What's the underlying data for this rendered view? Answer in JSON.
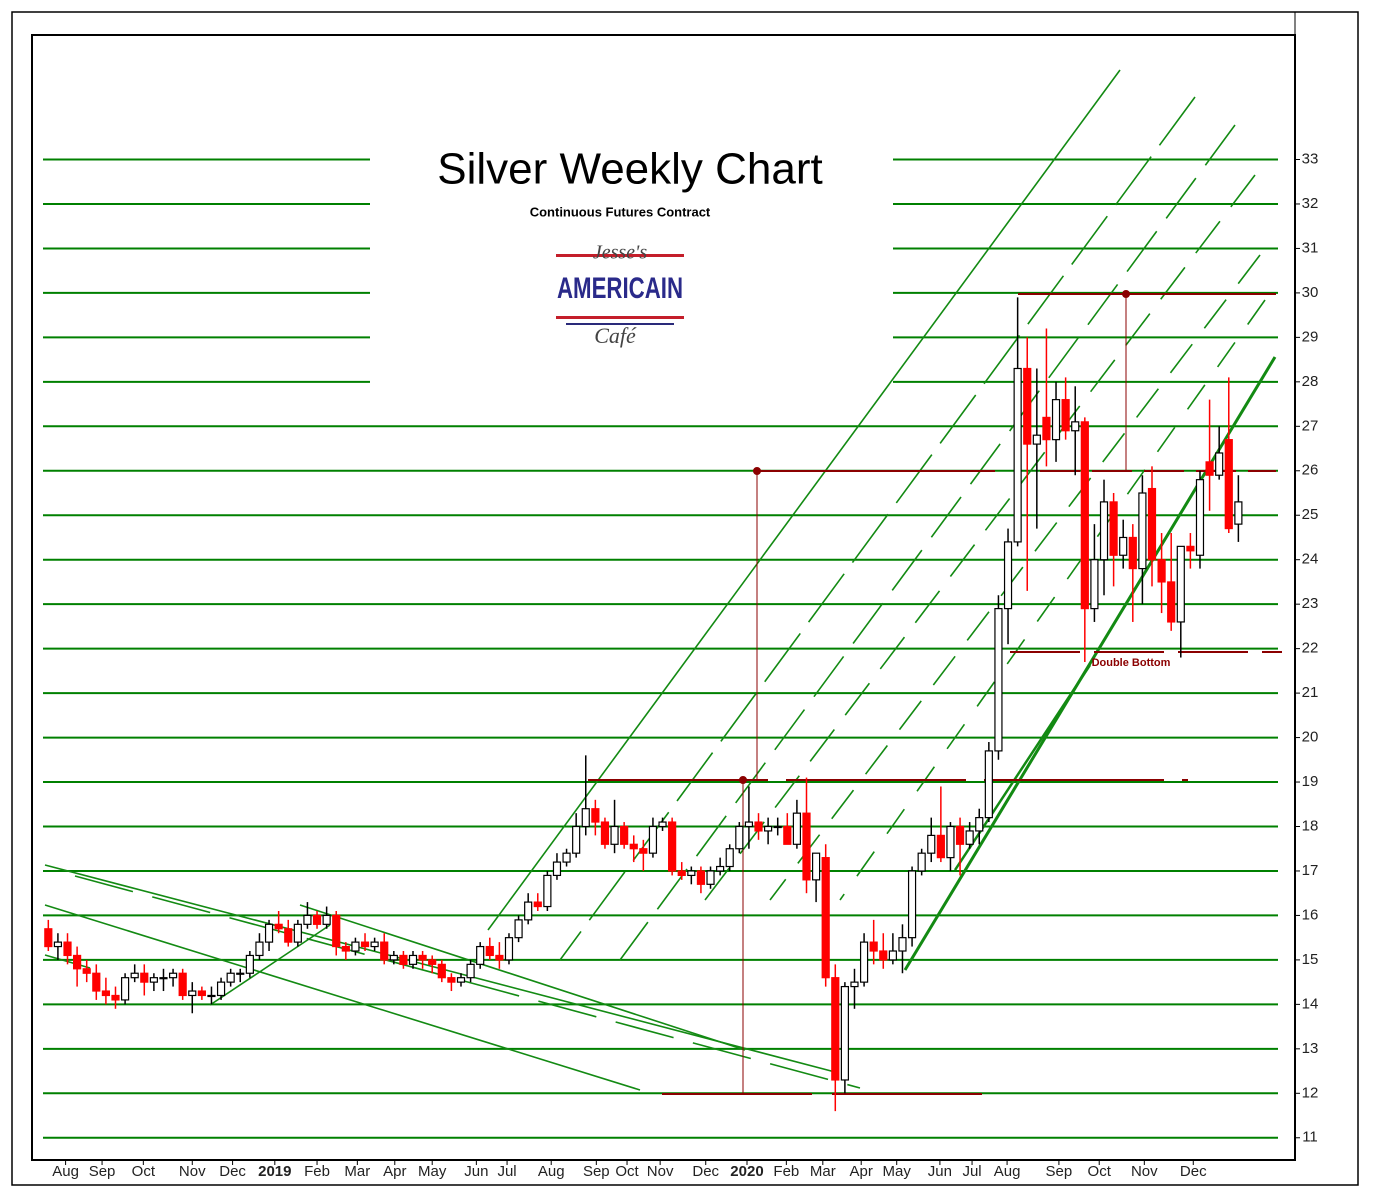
{
  "chart_data": {
    "type": "candlestick",
    "title": "Silver Weekly Chart",
    "subtitle": "Continuous Futures Contract",
    "logo": {
      "top": "Jesse's",
      "middle": "AMERICAIN",
      "bottom": "Café"
    },
    "annotations": [
      "Double Bottom"
    ],
    "up_color": "#ffffff",
    "down_color": "#ff0000",
    "grid_color": "#008000",
    "grid": true,
    "ylim": [
      10.5,
      35.8
    ],
    "yticks": [
      11,
      12,
      13,
      14,
      15,
      16,
      17,
      18,
      19,
      20,
      21,
      22,
      23,
      24,
      25,
      26,
      27,
      28,
      29,
      30,
      31,
      32,
      33
    ],
    "xlim": [
      -1.7,
      129.9
    ],
    "xticks": [
      {
        "value": 1.8,
        "label": "Aug"
      },
      {
        "value": 5.6,
        "label": "Sep"
      },
      {
        "value": 9.9,
        "label": "Oct"
      },
      {
        "value": 15,
        "label": "Nov"
      },
      {
        "value": 19.2,
        "label": "Dec"
      },
      {
        "value": 23.6,
        "label": "2019"
      },
      {
        "value": 28,
        "label": "Feb"
      },
      {
        "value": 32.2,
        "label": "Mar"
      },
      {
        "value": 36.1,
        "label": "Apr"
      },
      {
        "value": 40,
        "label": "May"
      },
      {
        "value": 44.6,
        "label": "Jun"
      },
      {
        "value": 47.8,
        "label": "Jul"
      },
      {
        "value": 52.4,
        "label": "Aug"
      },
      {
        "value": 57.1,
        "label": "Sep"
      },
      {
        "value": 60.3,
        "label": "Oct"
      },
      {
        "value": 63.75,
        "label": "Nov"
      },
      {
        "value": 68.5,
        "label": "Dec"
      },
      {
        "value": 72.8,
        "label": "2020"
      },
      {
        "value": 76.9,
        "label": "Feb"
      },
      {
        "value": 80.7,
        "label": "Mar"
      },
      {
        "value": 84.7,
        "label": "Apr"
      },
      {
        "value": 88.4,
        "label": "May"
      },
      {
        "value": 92.9,
        "label": "Jun"
      },
      {
        "value": 96.25,
        "label": "Jul"
      },
      {
        "value": 99.9,
        "label": "Aug"
      },
      {
        "value": 105.3,
        "label": "Sep"
      },
      {
        "value": 109.5,
        "label": "Oct"
      },
      {
        "value": 114.2,
        "label": "Nov"
      },
      {
        "value": 119.3,
        "label": "Dec"
      }
    ],
    "open": [
      15.7,
      15.3,
      15.4,
      15.1,
      14.8,
      14.7,
      14.3,
      14.2,
      14.1,
      14.6,
      14.7,
      14.5,
      14.6,
      14.6,
      14.7,
      14.2,
      14.3,
      14.2,
      14.2,
      14.5,
      14.7,
      14.7,
      15.1,
      15.4,
      15.8,
      15.7,
      15.4,
      15.8,
      16.0,
      15.8,
      16.0,
      15.3,
      15.2,
      15.4,
      15.3,
      15.4,
      15.0,
      15.1,
      14.9,
      15.1,
      15.0,
      14.9,
      14.6,
      14.5,
      14.6,
      14.9,
      15.3,
      15.1,
      15.0,
      15.5,
      15.9,
      16.3,
      16.2,
      16.9,
      17.2,
      17.4,
      18.0,
      18.4,
      18.1,
      17.6,
      18.0,
      17.6,
      17.5,
      17.4,
      18.0,
      18.1,
      17.0,
      16.9,
      17.0,
      16.7,
      17.0,
      17.1,
      17.5,
      18.0,
      18.1,
      17.9,
      18.0,
      18.0,
      17.6,
      18.3,
      16.8,
      17.3,
      14.6,
      12.3,
      14.4,
      14.5,
      15.4,
      15.2,
      15.0,
      15.2,
      15.5,
      17.0,
      17.4,
      17.8,
      17.3,
      18.0,
      17.6,
      17.9,
      18.2,
      19.7,
      22.9,
      24.4,
      28.3,
      26.6,
      27.2,
      26.7,
      27.6,
      26.9,
      27.1,
      22.9,
      24.0,
      25.3,
      24.1,
      24.5,
      23.8,
      25.6,
      24.0,
      23.5,
      22.6,
      24.3,
      24.1,
      26.2,
      25.9,
      26.7,
      24.8
    ],
    "high": [
      15.9,
      15.6,
      15.6,
      15.3,
      15.0,
      14.9,
      14.6,
      14.4,
      14.7,
      14.9,
      14.9,
      14.7,
      14.8,
      14.8,
      14.8,
      14.5,
      14.4,
      14.4,
      14.6,
      14.8,
      14.8,
      15.2,
      15.6,
      15.9,
      16.1,
      15.9,
      15.9,
      16.3,
      16.1,
      16.2,
      16.1,
      15.4,
      15.5,
      15.6,
      15.5,
      15.6,
      15.2,
      15.2,
      15.2,
      15.2,
      15.1,
      15.0,
      14.7,
      14.7,
      15.0,
      15.4,
      15.5,
      15.4,
      15.6,
      16.0,
      16.5,
      16.5,
      17.0,
      17.4,
      17.5,
      18.3,
      19.6,
      18.6,
      18.2,
      18.6,
      18.1,
      17.8,
      17.7,
      18.2,
      18.2,
      18.2,
      17.2,
      17.1,
      17.1,
      17.1,
      17.3,
      17.6,
      18.1,
      18.9,
      18.3,
      18.2,
      18.2,
      18.3,
      18.6,
      19.1,
      17.4,
      17.6,
      14.9,
      14.5,
      14.8,
      15.6,
      15.9,
      15.6,
      15.6,
      15.8,
      17.1,
      17.5,
      18.2,
      18.9,
      18.1,
      18.2,
      18.1,
      18.4,
      19.9,
      23.2,
      24.7,
      29.9,
      29.0,
      28.3,
      29.2,
      28.0,
      28.1,
      27.9,
      27.2,
      24.8,
      25.8,
      25.5,
      24.9,
      24.8,
      25.9,
      26.1,
      24.6,
      24.6,
      24.3,
      24.6,
      26.0,
      27.6,
      27.0,
      28.1,
      25.9
    ],
    "low": [
      15.2,
      15.0,
      14.9,
      14.4,
      14.5,
      14.1,
      14.0,
      13.9,
      14.0,
      14.5,
      14.2,
      14.3,
      14.3,
      14.4,
      14.1,
      13.8,
      14.1,
      14.0,
      14.1,
      14.4,
      14.5,
      14.6,
      15.0,
      15.2,
      15.6,
      15.3,
      15.3,
      15.7,
      15.7,
      15.7,
      15.1,
      15.0,
      15.1,
      15.2,
      15.2,
      14.9,
      14.9,
      14.8,
      14.8,
      14.8,
      14.7,
      14.5,
      14.3,
      14.4,
      14.5,
      14.8,
      15.0,
      14.8,
      14.9,
      15.4,
      15.8,
      16.1,
      16.1,
      16.8,
      17.1,
      17.3,
      17.8,
      17.8,
      17.5,
      17.4,
      17.5,
      17.2,
      17.0,
      17.3,
      17.9,
      16.9,
      16.8,
      16.7,
      16.5,
      16.6,
      16.9,
      17.0,
      17.4,
      17.5,
      17.7,
      17.6,
      17.8,
      17.6,
      17.5,
      16.5,
      16.3,
      14.4,
      11.6,
      12.0,
      13.9,
      14.4,
      14.9,
      14.8,
      14.9,
      14.7,
      15.3,
      16.9,
      17.2,
      17.2,
      17.0,
      16.9,
      17.5,
      17.6,
      18.1,
      19.5,
      22.1,
      24.3,
      23.3,
      24.7,
      26.1,
      26.2,
      26.7,
      25.9,
      21.7,
      22.6,
      23.2,
      23.4,
      23.8,
      22.6,
      23.0,
      23.4,
      22.8,
      22.4,
      21.8,
      23.8,
      23.8,
      25.1,
      25.8,
      24.6,
      24.4
    ],
    "close": [
      15.3,
      15.4,
      15.1,
      14.8,
      14.7,
      14.3,
      14.2,
      14.1,
      14.6,
      14.7,
      14.5,
      14.6,
      14.6,
      14.7,
      14.2,
      14.3,
      14.2,
      14.2,
      14.5,
      14.7,
      14.7,
      15.1,
      15.4,
      15.8,
      15.7,
      15.4,
      15.8,
      16.0,
      15.8,
      16.0,
      15.3,
      15.2,
      15.4,
      15.3,
      15.4,
      15.0,
      15.1,
      14.9,
      15.1,
      15.0,
      14.9,
      14.6,
      14.5,
      14.6,
      14.9,
      15.3,
      15.1,
      15.0,
      15.5,
      15.9,
      16.3,
      16.2,
      16.9,
      17.2,
      17.4,
      18.0,
      18.4,
      18.1,
      17.6,
      18.0,
      17.6,
      17.5,
      17.4,
      18.0,
      18.1,
      17.0,
      16.9,
      17.0,
      16.7,
      17.0,
      17.1,
      17.5,
      18.0,
      18.1,
      17.9,
      18.0,
      18.0,
      17.6,
      18.3,
      16.8,
      17.4,
      14.6,
      12.3,
      14.4,
      14.5,
      15.4,
      15.2,
      15.0,
      15.2,
      15.5,
      17.0,
      17.4,
      17.8,
      17.3,
      18.0,
      17.6,
      17.9,
      18.2,
      19.7,
      22.9,
      24.4,
      28.3,
      26.6,
      26.8,
      26.7,
      27.6,
      26.9,
      27.1,
      22.9,
      24.0,
      25.3,
      24.1,
      24.5,
      23.8,
      25.5,
      24.0,
      23.5,
      22.6,
      24.3,
      24.2,
      25.8,
      25.9,
      26.4,
      24.7,
      25.3
    ]
  }
}
